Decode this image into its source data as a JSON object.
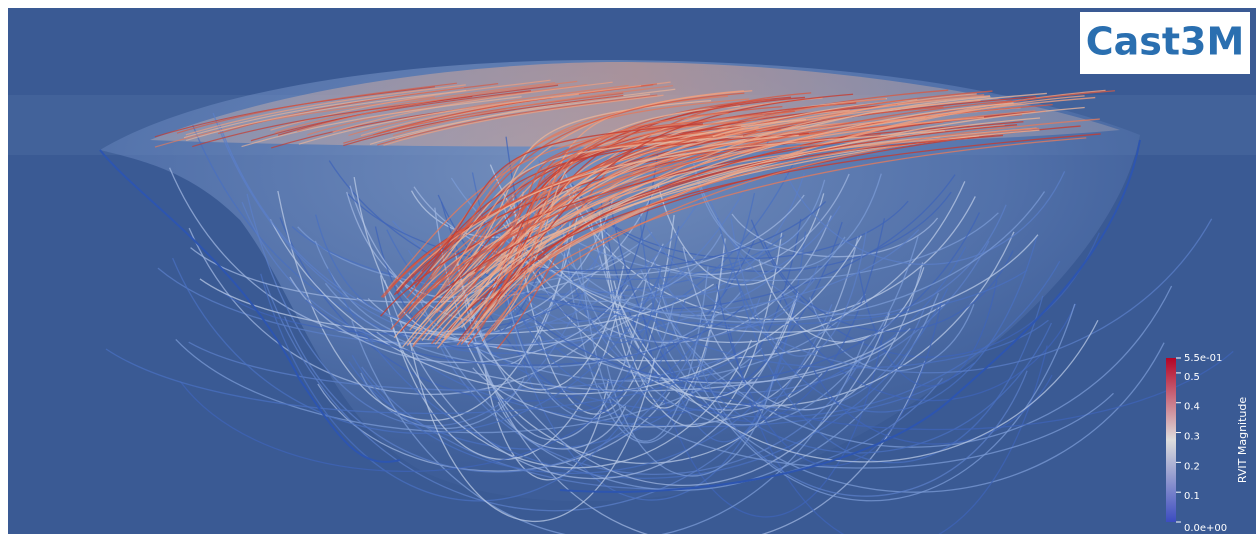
{
  "logo": "Cast3M",
  "colorbar": {
    "title": "RVIT Magnitude",
    "range": [
      0,
      0.55
    ],
    "ticks": [
      {
        "value": 0.55,
        "label": "5.5e-01"
      },
      0.5,
      0.4,
      0.3,
      0.2,
      0.1,
      {
        "value": 0,
        "label": "0.0e+00"
      }
    ]
  }
}
